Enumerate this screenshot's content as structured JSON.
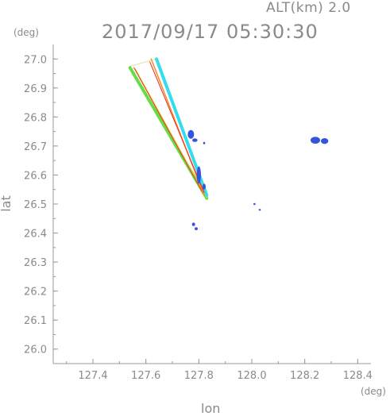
{
  "header": {
    "altitude_label": "ALT(km) 2.0",
    "datetime": "2017/09/17 05:30:30",
    "y_unit": "(deg)",
    "x_unit": "(deg)"
  },
  "chart_data": {
    "type": "scatter",
    "title": "2017/09/17 05:30:30",
    "subtitle": "ALT(km) 2.0",
    "xlabel": "lon",
    "ylabel": "lat",
    "xunit": "(deg)",
    "yunit": "(deg)",
    "xlim": [
      127.25,
      128.45
    ],
    "ylim": [
      25.95,
      27.05
    ],
    "xticks": [
      127.4,
      127.6,
      127.8,
      128.0,
      128.2,
      128.4
    ],
    "xtick_labels": [
      "127.4",
      "127.6",
      "127.8",
      "128.0",
      "128.2",
      "128.4"
    ],
    "yticks": [
      26.0,
      26.1,
      26.2,
      26.3,
      26.4,
      26.5,
      26.6,
      26.7,
      26.8,
      26.9,
      27.0
    ],
    "ytick_labels": [
      "26.0",
      "26.1",
      "26.2",
      "26.3",
      "26.4",
      "26.5",
      "26.6",
      "26.7",
      "26.8",
      "26.9",
      "27.0"
    ],
    "grid": false,
    "colors": {
      "axis": "#999999",
      "text": "#8a8a8a",
      "echo_blue": "#3355dd",
      "echo_cyan": "#33ddee",
      "echo_green": "#66dd44",
      "echo_yellow": "#dddd33",
      "echo_orange": "#ff8822",
      "echo_red": "#ee2222"
    },
    "beams": [
      {
        "name": "wedge-west-edge",
        "points": [
          [
            127.54,
            26.97
          ],
          [
            127.83,
            26.52
          ]
        ],
        "color": "#66dd44",
        "width": 4
      },
      {
        "name": "wedge-west-inner",
        "points": [
          [
            127.56,
            26.965
          ],
          [
            127.83,
            26.52
          ]
        ],
        "color": "#ddcc33",
        "width": 1.2
      },
      {
        "name": "wedge-west-red",
        "points": [
          [
            127.555,
            26.97
          ],
          [
            127.82,
            26.53
          ]
        ],
        "color": "#ee3322",
        "width": 1
      },
      {
        "name": "wedge-east-cyan",
        "points": [
          [
            127.64,
            27.0
          ],
          [
            127.83,
            26.53
          ]
        ],
        "color": "#33ddee",
        "width": 4
      },
      {
        "name": "wedge-east-orange",
        "points": [
          [
            127.62,
            27.0
          ],
          [
            127.82,
            26.53
          ]
        ],
        "color": "#ff8822",
        "width": 1.5
      },
      {
        "name": "wedge-east-red",
        "points": [
          [
            127.615,
            26.99
          ],
          [
            127.82,
            26.54
          ]
        ],
        "color": "#ee2222",
        "width": 1
      },
      {
        "name": "wedge-top-edge",
        "points": [
          [
            127.54,
            26.975
          ],
          [
            127.64,
            27.0
          ]
        ],
        "color": "#cccc66",
        "width": 0.6
      }
    ],
    "echoes": [
      {
        "lon": 127.77,
        "lat": 26.74,
        "rx": 0.012,
        "ry": 0.015,
        "color": "#3355dd"
      },
      {
        "lon": 127.785,
        "lat": 26.72,
        "rx": 0.01,
        "ry": 0.006,
        "color": "#3355dd"
      },
      {
        "lon": 127.82,
        "lat": 26.71,
        "rx": 0.004,
        "ry": 0.004,
        "color": "#3355dd"
      },
      {
        "lon": 127.8,
        "lat": 26.6,
        "rx": 0.008,
        "ry": 0.03,
        "color": "#3355dd"
      },
      {
        "lon": 127.82,
        "lat": 26.56,
        "rx": 0.006,
        "ry": 0.01,
        "color": "#3355dd"
      },
      {
        "lon": 127.78,
        "lat": 26.43,
        "rx": 0.006,
        "ry": 0.006,
        "color": "#3355dd"
      },
      {
        "lon": 127.79,
        "lat": 26.415,
        "rx": 0.006,
        "ry": 0.005,
        "color": "#3355dd"
      },
      {
        "lon": 128.01,
        "lat": 26.5,
        "rx": 0.004,
        "ry": 0.003,
        "color": "#3355dd"
      },
      {
        "lon": 128.03,
        "lat": 26.48,
        "rx": 0.004,
        "ry": 0.003,
        "color": "#3355dd"
      },
      {
        "lon": 128.24,
        "lat": 26.72,
        "rx": 0.018,
        "ry": 0.012,
        "color": "#3355dd"
      },
      {
        "lon": 128.275,
        "lat": 26.717,
        "rx": 0.014,
        "ry": 0.01,
        "color": "#3355dd"
      }
    ]
  }
}
